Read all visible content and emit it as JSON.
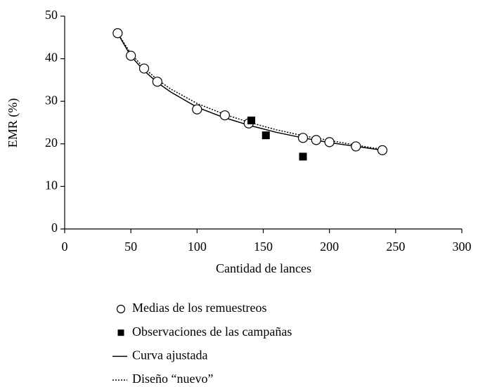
{
  "chart_data": {
    "type": "scatter",
    "x_label": "Cantidad de lances",
    "y_label": "EMR (%)",
    "xlim": [
      0,
      300
    ],
    "xticks": [
      0,
      50,
      100,
      150,
      200,
      250,
      300
    ],
    "ylim": [
      0,
      50
    ],
    "yticks": [
      0,
      10,
      20,
      30,
      40,
      50
    ],
    "series": [
      {
        "name": "Medias de los remuestreos",
        "marker": "circle",
        "color": "#000000",
        "x": [
          40,
          50,
          60,
          70,
          100,
          121,
          139,
          180,
          190,
          200,
          220,
          240
        ],
        "values": [
          46,
          40.7,
          37.7,
          34.6,
          28.1,
          26.7,
          24.8,
          21.4,
          20.9,
          20.4,
          19.4,
          18.5
        ]
      },
      {
        "name": "Observaciones de las campañas",
        "marker": "square",
        "color": "#000000",
        "x": [
          141,
          152,
          180
        ],
        "values": [
          25.5,
          22,
          17
        ]
      },
      {
        "name": "Curva ajustada",
        "marker": "line",
        "color": "#000000",
        "x": [
          40,
          50,
          60,
          70,
          80,
          100,
          120,
          140,
          160,
          180,
          200,
          220,
          240
        ],
        "values": [
          46,
          40.6,
          37.2,
          34.4,
          32.2,
          28.6,
          26.2,
          24.3,
          22.7,
          21.4,
          20.3,
          19.4,
          18.5
        ]
      },
      {
        "name": "Diseño “nuevo”",
        "marker": "dotted",
        "color": "#000000",
        "x": [
          40,
          50,
          60,
          70,
          80,
          100,
          120,
          140,
          160,
          180,
          200,
          220,
          240
        ],
        "values": [
          46,
          41.2,
          37.8,
          35.1,
          32.9,
          29.5,
          27.0,
          25.0,
          23.3,
          21.9,
          20.8,
          19.7,
          18.7
        ]
      }
    ]
  }
}
